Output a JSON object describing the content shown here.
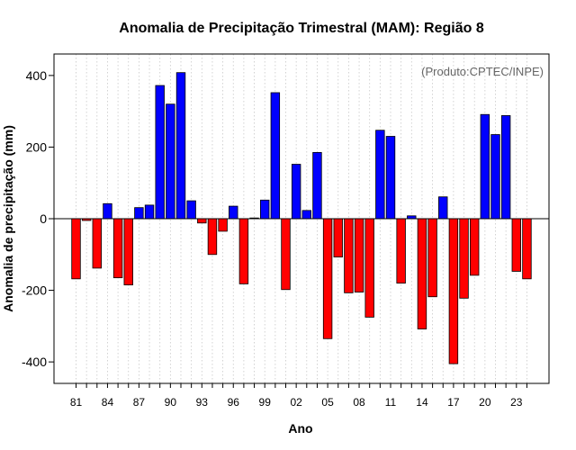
{
  "chart_data": {
    "type": "bar",
    "title": "Anomalia de Precipitação Trimestral (MAM): Região 8",
    "xlabel": "Ano",
    "ylabel": "Anomalia de precipitação (mm)",
    "annotation": "(Produto:CPTEC/INPE)",
    "ylim": [
      -460,
      460
    ],
    "yticks": [
      -400,
      -200,
      0,
      200,
      400
    ],
    "grid": "vertical-dotted",
    "colors": {
      "positive": "#0000ff",
      "negative": "#ff0000",
      "grid": "#c8c8c8",
      "frame": "#000000"
    },
    "years": [
      1981,
      1982,
      1983,
      1984,
      1985,
      1986,
      1987,
      1988,
      1989,
      1990,
      1991,
      1992,
      1993,
      1994,
      1995,
      1996,
      1997,
      1998,
      1999,
      2000,
      2001,
      2002,
      2003,
      2004,
      2005,
      2006,
      2007,
      2008,
      2009,
      2010,
      2011,
      2012,
      2013,
      2014,
      2015,
      2016,
      2017,
      2018,
      2019,
      2020,
      2021,
      2022,
      2023,
      2024
    ],
    "values": [
      -168,
      -5,
      -138,
      42,
      -165,
      -185,
      31,
      38,
      372,
      320,
      408,
      50,
      -12,
      -100,
      -35,
      35,
      -182,
      2,
      52,
      352,
      -198,
      152,
      23,
      185,
      -335,
      -107,
      -207,
      -205,
      -275,
      247,
      230,
      -180,
      8,
      -308,
      -218,
      61,
      -405,
      -222,
      -158,
      291,
      235,
      288,
      -147,
      -168
    ],
    "xtick_labels": [
      "81",
      "84",
      "87",
      "90",
      "93",
      "96",
      "99",
      "02",
      "05",
      "08",
      "11",
      "14",
      "17",
      "20",
      "23"
    ],
    "xtick_years": [
      1981,
      1984,
      1987,
      1990,
      1993,
      1996,
      1999,
      2002,
      2005,
      2008,
      2011,
      2014,
      2017,
      2020,
      2023
    ]
  }
}
